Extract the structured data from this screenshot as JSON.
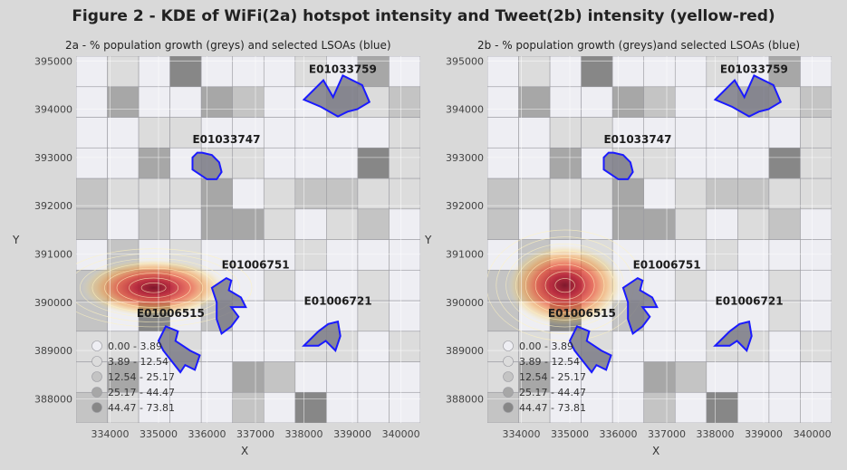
{
  "figure_title": "Figure 2 - KDE of WiFi(2a) hotspot intensity and Tweet(2b) intensity (yellow-red)",
  "chart_data": [
    {
      "type": "heatmap",
      "title": "2a - % population growth (greys) and selected LSOAs (blue)",
      "xlabel": "X",
      "ylabel": "Y",
      "xlim": [
        333300,
        340400
      ],
      "ylim": [
        387500,
        395100
      ],
      "x_ticks": [
        334000,
        335000,
        336000,
        337000,
        338000,
        339000,
        340000
      ],
      "y_ticks": [
        388000,
        389000,
        390000,
        391000,
        392000,
        393000,
        394000,
        395000
      ],
      "kde_peak": {
        "x": 334900,
        "y": 390300
      },
      "kde_spread": {
        "x": 1500,
        "y": 600
      },
      "legend": {
        "placement": "bottom-left",
        "items": [
          "0.00 - 3.89",
          "3.89 - 12.54",
          "12.54 - 25.17",
          "25.17 - 44.47",
          "44.47 - 73.81"
        ]
      },
      "lsoas": [
        {
          "label": "E01033759",
          "label_x": 338100,
          "label_y": 394750,
          "boundary": [
            [
              338000,
              394200
            ],
            [
              338400,
              394600
            ],
            [
              338600,
              394250
            ],
            [
              338800,
              394700
            ],
            [
              339200,
              394500
            ],
            [
              339350,
              394150
            ],
            [
              339100,
              394000
            ],
            [
              338900,
              393950
            ],
            [
              338700,
              393850
            ],
            [
              338350,
              394050
            ]
          ]
        },
        {
          "label": "E01033747",
          "label_x": 335700,
          "label_y": 393300,
          "boundary": [
            [
              335700,
              392750
            ],
            [
              335700,
              393000
            ],
            [
              335800,
              393100
            ],
            [
              335900,
              393100
            ],
            [
              336100,
              393050
            ],
            [
              336250,
              392900
            ],
            [
              336300,
              392700
            ],
            [
              336200,
              392550
            ],
            [
              336000,
              392550
            ],
            [
              335850,
              392650
            ]
          ]
        },
        {
          "label": "E01006751",
          "label_x": 336300,
          "label_y": 390700,
          "boundary": [
            [
              336100,
              390300
            ],
            [
              336400,
              390500
            ],
            [
              336500,
              390450
            ],
            [
              336450,
              390250
            ],
            [
              336700,
              390100
            ],
            [
              336800,
              389900
            ],
            [
              336500,
              389900
            ],
            [
              336650,
              389700
            ],
            [
              336500,
              389500
            ],
            [
              336300,
              389350
            ],
            [
              336200,
              389650
            ],
            [
              336200,
              390000
            ]
          ]
        },
        {
          "label": "E01006721",
          "label_x": 338000,
          "label_y": 389950,
          "boundary": [
            [
              338000,
              389100
            ],
            [
              338300,
              389400
            ],
            [
              338500,
              389550
            ],
            [
              338700,
              389600
            ],
            [
              338750,
              389300
            ],
            [
              338650,
              389000
            ],
            [
              338450,
              389200
            ],
            [
              338300,
              389100
            ]
          ]
        },
        {
          "label": "E01006515",
          "label_x": 334550,
          "label_y": 389700,
          "boundary": [
            [
              335150,
              389500
            ],
            [
              335400,
              389400
            ],
            [
              335350,
              389200
            ],
            [
              335650,
              389000
            ],
            [
              335850,
              388900
            ],
            [
              335750,
              388600
            ],
            [
              335550,
              388700
            ],
            [
              335450,
              388550
            ],
            [
              335100,
              389000
            ],
            [
              335000,
              389200
            ]
          ]
        }
      ]
    },
    {
      "type": "heatmap",
      "title": "2b - % population growth (greys)and selected LSOAs (blue)",
      "xlabel": "X",
      "ylabel": "Y",
      "xlim": [
        333300,
        340400
      ],
      "ylim": [
        387500,
        395100
      ],
      "x_ticks": [
        334000,
        335000,
        336000,
        337000,
        338000,
        339000,
        340000
      ],
      "y_ticks": [
        388000,
        389000,
        390000,
        391000,
        392000,
        393000,
        394000,
        395000
      ],
      "kde_peak": {
        "x": 334900,
        "y": 390350
      },
      "kde_spread": {
        "x": 1200,
        "y": 850
      },
      "legend": {
        "placement": "bottom-left",
        "items": [
          "0.00 - 3.89",
          "3.89 - 12.54",
          "12.54 - 25.17",
          "25.17 - 44.47",
          "44.47 - 73.81"
        ]
      },
      "lsoas": [
        {
          "label": "E01033759",
          "label_x": 338100,
          "label_y": 394750,
          "boundary": [
            [
              338000,
              394200
            ],
            [
              338400,
              394600
            ],
            [
              338600,
              394250
            ],
            [
              338800,
              394700
            ],
            [
              339200,
              394500
            ],
            [
              339350,
              394150
            ],
            [
              339100,
              394000
            ],
            [
              338900,
              393950
            ],
            [
              338700,
              393850
            ],
            [
              338350,
              394050
            ]
          ]
        },
        {
          "label": "E01033747",
          "label_x": 335700,
          "label_y": 393300,
          "boundary": [
            [
              335700,
              392750
            ],
            [
              335700,
              393000
            ],
            [
              335800,
              393100
            ],
            [
              335900,
              393100
            ],
            [
              336100,
              393050
            ],
            [
              336250,
              392900
            ],
            [
              336300,
              392700
            ],
            [
              336200,
              392550
            ],
            [
              336000,
              392550
            ],
            [
              335850,
              392650
            ]
          ]
        },
        {
          "label": "E01006751",
          "label_x": 336300,
          "label_y": 390700,
          "boundary": [
            [
              336100,
              390300
            ],
            [
              336400,
              390500
            ],
            [
              336500,
              390450
            ],
            [
              336450,
              390250
            ],
            [
              336700,
              390100
            ],
            [
              336800,
              389900
            ],
            [
              336500,
              389900
            ],
            [
              336650,
              389700
            ],
            [
              336500,
              389500
            ],
            [
              336300,
              389350
            ],
            [
              336200,
              389650
            ],
            [
              336200,
              390000
            ]
          ]
        },
        {
          "label": "E01006721",
          "label_x": 338000,
          "label_y": 389950,
          "boundary": [
            [
              338000,
              389100
            ],
            [
              338300,
              389400
            ],
            [
              338500,
              389550
            ],
            [
              338700,
              389600
            ],
            [
              338750,
              389300
            ],
            [
              338650,
              389000
            ],
            [
              338450,
              389200
            ],
            [
              338300,
              389100
            ]
          ]
        },
        {
          "label": "E01006515",
          "label_x": 334550,
          "label_y": 389700,
          "boundary": [
            [
              335150,
              389500
            ],
            [
              335400,
              389400
            ],
            [
              335350,
              389200
            ],
            [
              335650,
              389000
            ],
            [
              335850,
              388900
            ],
            [
              335750,
              388600
            ],
            [
              335550,
              388700
            ],
            [
              335450,
              388550
            ],
            [
              335100,
              389000
            ],
            [
              335000,
              389200
            ]
          ]
        }
      ]
    }
  ]
}
